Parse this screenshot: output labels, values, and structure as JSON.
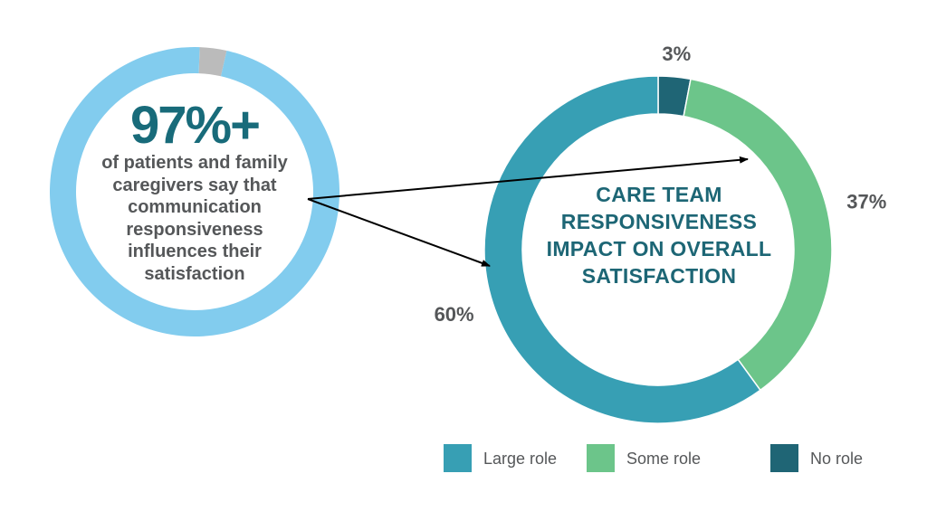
{
  "left_stat": {
    "value": "97%+",
    "description": "of patients and family caregivers say that communication responsiveness influences their satisfaction",
    "ring_fill_fraction": 0.97
  },
  "chart_data": {
    "type": "pie",
    "title": "CARE TEAM RESPONSIVENESS IMPACT ON OVERALL SATISFACTION",
    "categories": [
      "Large role",
      "Some role",
      "No role"
    ],
    "values": [
      60,
      37,
      3
    ],
    "data_labels": [
      "60%",
      "37%",
      "3%"
    ],
    "colors": [
      "#379fb4",
      "#6cc58a",
      "#1f6575"
    ],
    "donut": true,
    "legend_position": "bottom"
  },
  "colors": {
    "left_ring": "#82ccee",
    "left_ring_remainder": "#bbbbbb",
    "stat_text": "#186b7a",
    "body_text": "#555759"
  }
}
